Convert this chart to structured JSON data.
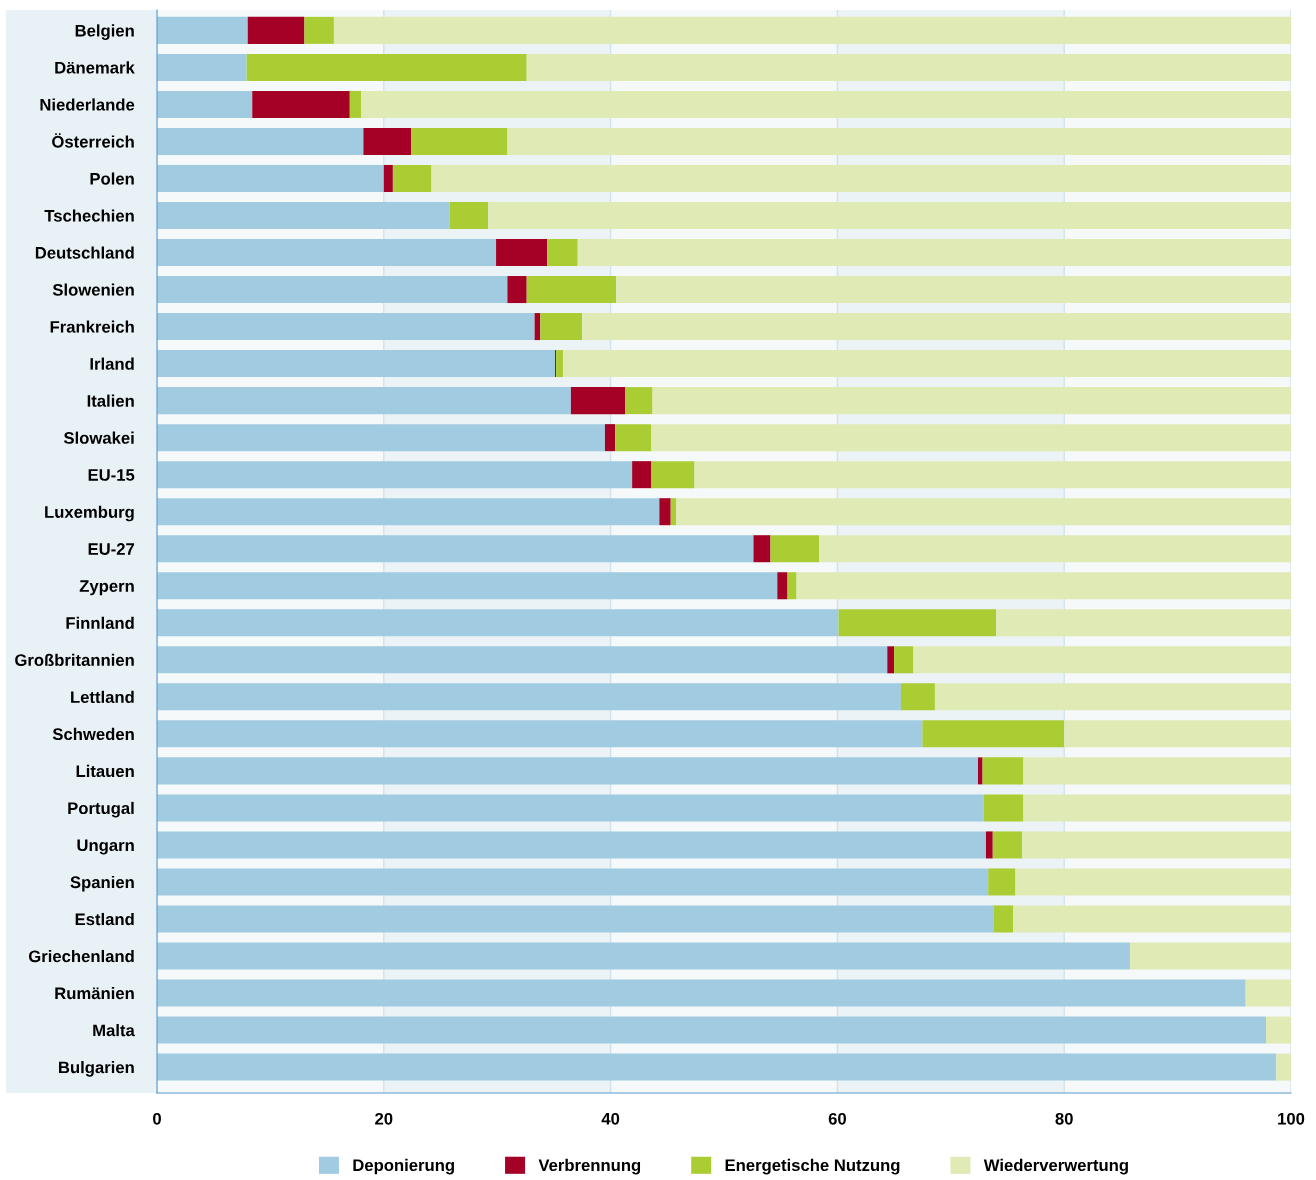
{
  "chart_data": {
    "type": "bar",
    "orientation": "horizontal",
    "stacked": true,
    "categories": [
      "Belgien",
      "Dänemark",
      "Niederlande",
      "Österreich",
      "Polen",
      "Tschechien",
      "Deutschland",
      "Slowenien",
      "Frankreich",
      "Irland",
      "Italien",
      "Slowakei",
      "EU-15",
      "Luxemburg",
      "EU-27",
      "Zypern",
      "Finnland",
      "Großbritannien",
      "Lettland",
      "Schweden",
      "Litauen",
      "Portugal",
      "Ungarn",
      "Spanien",
      "Estland",
      "Griechenland",
      "Rumänien",
      "Malta",
      "Bulgarien"
    ],
    "series": [
      {
        "name": "Deponierung",
        "color": "#a0cbe1",
        "values": [
          8.0,
          7.9,
          8.4,
          18.2,
          20.0,
          25.8,
          29.9,
          30.9,
          33.3,
          35.1,
          36.5,
          39.5,
          41.9,
          44.3,
          52.6,
          54.7,
          60.1,
          64.4,
          65.6,
          67.5,
          72.4,
          72.9,
          73.1,
          73.3,
          73.8,
          85.8,
          96.0,
          97.8,
          98.7
        ]
      },
      {
        "name": "Verbrennung",
        "color": "#a50026",
        "values": [
          5.0,
          0,
          8.6,
          4.2,
          0.8,
          0,
          4.5,
          1.7,
          0.5,
          0.1,
          4.8,
          0.9,
          1.7,
          1.0,
          1.5,
          0.9,
          0,
          0.6,
          0,
          0,
          0.4,
          0,
          0.6,
          0,
          0,
          0,
          0,
          0,
          0
        ]
      },
      {
        "name": "Energetische Nutzung",
        "color": "#aacd33",
        "values": [
          2.6,
          24.7,
          1.0,
          8.5,
          3.4,
          3.4,
          2.7,
          7.9,
          3.7,
          0.6,
          2.4,
          3.2,
          3.8,
          0.5,
          4.3,
          0.8,
          13.9,
          1.7,
          3.0,
          12.5,
          3.6,
          3.5,
          2.6,
          2.4,
          1.7,
          0,
          0,
          0,
          0
        ]
      },
      {
        "name": "Wiederverwertung",
        "color": "#e0eab5",
        "values": [
          84.4,
          67.4,
          82.0,
          69.1,
          75.8,
          70.8,
          62.9,
          59.5,
          62.5,
          64.2,
          56.3,
          56.4,
          52.6,
          54.2,
          41.6,
          43.6,
          26.0,
          33.3,
          31.4,
          20.0,
          23.6,
          23.6,
          23.7,
          24.3,
          24.5,
          14.2,
          4.0,
          2.2,
          1.3
        ]
      }
    ],
    "xlim": [
      0,
      100
    ],
    "xticks": [
      0,
      20,
      40,
      60,
      80,
      100
    ],
    "grid": "x",
    "legend": "bottom"
  }
}
